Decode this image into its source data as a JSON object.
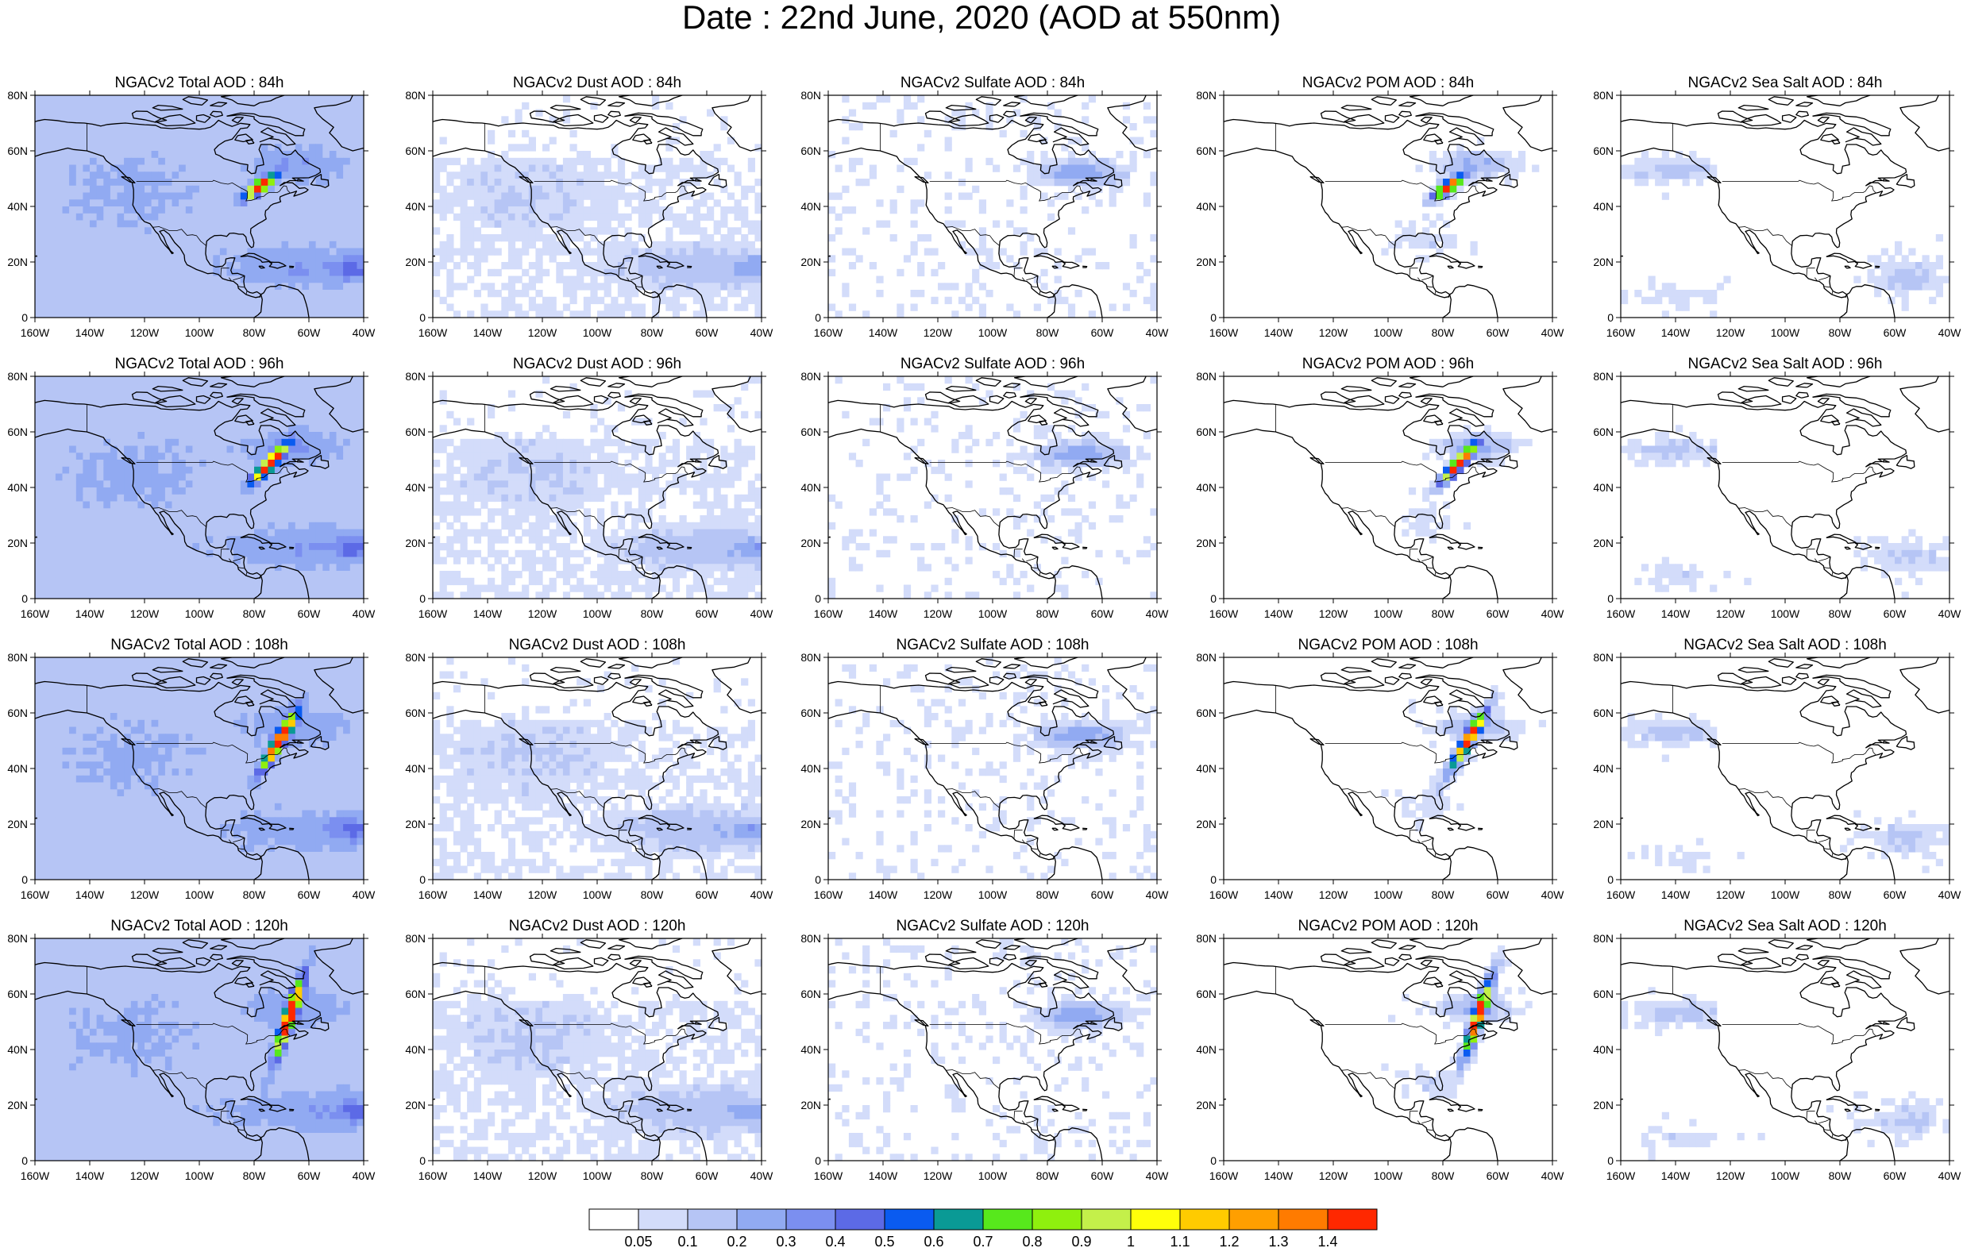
{
  "title": "Date : 22nd June, 2020 (AOD at 550nm)",
  "map_extent": {
    "lon": [
      -160,
      -40
    ],
    "lat": [
      0,
      80
    ]
  },
  "lon_ticks": [
    "160W",
    "140W",
    "120W",
    "100W",
    "80W",
    "60W",
    "40W"
  ],
  "lat_ticks": [
    "0",
    "20N",
    "40N",
    "60N",
    "80N"
  ],
  "species": [
    {
      "id": "total",
      "label": "NGACv2 Total AOD"
    },
    {
      "id": "dust",
      "label": "NGACv2 Dust AOD"
    },
    {
      "id": "sulfate",
      "label": "NGACv2 Sulfate AOD"
    },
    {
      "id": "pom",
      "label": "NGACv2 POM AOD"
    },
    {
      "id": "seasalt",
      "label": "NGACv2 Sea Salt AOD"
    }
  ],
  "panel_titles": [
    [
      "NGACv2 Total AOD : 84h",
      "NGACv2 Dust AOD : 84h",
      "NGACv2 Sulfate AOD : 84h",
      "NGACv2 POM AOD : 84h",
      "NGACv2 Sea Salt AOD : 84h"
    ],
    [
      "NGACv2 Total AOD : 96h",
      "NGACv2 Dust AOD : 96h",
      "NGACv2 Sulfate AOD : 96h",
      "NGACv2 POM AOD : 96h",
      "NGACv2 Sea Salt AOD : 96h"
    ],
    [
      "NGACv2 Total AOD : 108h",
      "NGACv2 Dust AOD : 108h",
      "NGACv2 Sulfate AOD : 108h",
      "NGACv2 POM AOD : 108h",
      "NGACv2 Sea Salt AOD : 108h"
    ],
    [
      "NGACv2 Total AOD : 120h",
      "NGACv2 Dust AOD : 120h",
      "NGACv2 Sulfate AOD : 120h",
      "NGACv2 POM AOD : 120h",
      "NGACv2 Sea Salt  AOD : 120h"
    ]
  ],
  "colorbar": {
    "labels": [
      "0.05",
      "0.1",
      "0.2",
      "0.3",
      "0.4",
      "0.5",
      "0.6",
      "0.7",
      "0.8",
      "0.9",
      "1",
      "1.1",
      "1.2",
      "1.3",
      "1.4"
    ],
    "colors": [
      "#ffffff",
      "#d3dcfa",
      "#b6c5f5",
      "#91aaf2",
      "#7b8ff0",
      "#5c6ae6",
      "#0a5bf0",
      "#0a9a95",
      "#57e81c",
      "#8ff00e",
      "#c4f04a",
      "#ffff0a",
      "#ffcb00",
      "#ff9f00",
      "#ff7b00",
      "#ff2800"
    ]
  }
}
